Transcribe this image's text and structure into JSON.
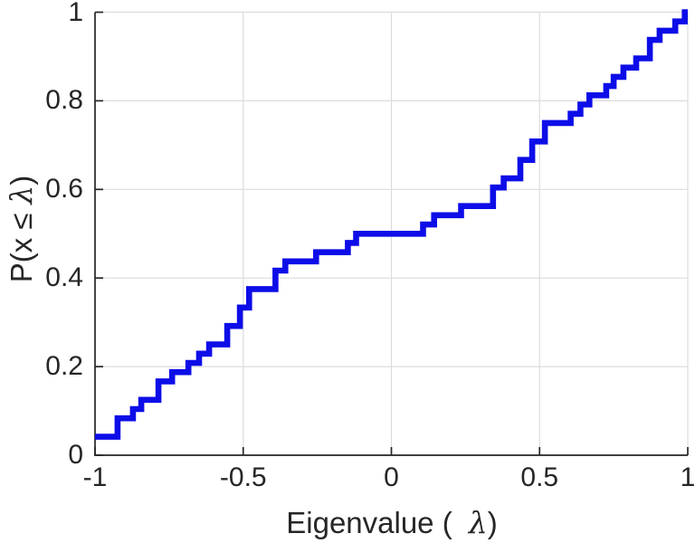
{
  "figure": {
    "background": "#ffffff"
  },
  "chart_data": {
    "type": "line",
    "variant": "empirical-cdf-staircase",
    "title": "",
    "xlabel": {
      "prefix": "Eigenvalue (",
      "symbol": "λ",
      "suffix": ")"
    },
    "ylabel": {
      "prefix": "P(x ≤",
      "symbol": "λ",
      "suffix": ")"
    },
    "xlim": [
      -1,
      1
    ],
    "ylim": [
      0,
      1
    ],
    "grid": true,
    "legend": "none",
    "line_color": "#0d0de8",
    "axis_color": "#262626",
    "grid_color": "#dcdcdc",
    "xticks": [
      {
        "v": -1,
        "label": "-1"
      },
      {
        "v": -0.5,
        "label": "-0.5"
      },
      {
        "v": 0,
        "label": "0"
      },
      {
        "v": 0.5,
        "label": "0.5"
      },
      {
        "v": 1,
        "label": "1"
      }
    ],
    "yticks": [
      {
        "v": 0,
        "label": "0"
      },
      {
        "v": 0.2,
        "label": "0.2"
      },
      {
        "v": 0.4,
        "label": "0.4"
      },
      {
        "v": 0.6,
        "label": "0.6"
      },
      {
        "v": 0.8,
        "label": "0.8"
      },
      {
        "v": 1,
        "label": "1"
      }
    ],
    "steps": [
      [
        -1.0,
        0.0417
      ],
      [
        -0.924,
        0.0833
      ],
      [
        -0.872,
        0.1042
      ],
      [
        -0.844,
        0.125
      ],
      [
        -0.786,
        0.1667
      ],
      [
        -0.74,
        0.1875
      ],
      [
        -0.685,
        0.2083
      ],
      [
        -0.649,
        0.2292
      ],
      [
        -0.615,
        0.25
      ],
      [
        -0.554,
        0.2917
      ],
      [
        -0.511,
        0.3333
      ],
      [
        -0.48,
        0.375
      ],
      [
        -0.391,
        0.4167
      ],
      [
        -0.358,
        0.4375
      ],
      [
        -0.254,
        0.4583
      ],
      [
        -0.147,
        0.4792
      ],
      [
        -0.119,
        0.5
      ],
      [
        0.107,
        0.5208
      ],
      [
        0.144,
        0.5417
      ],
      [
        0.235,
        0.5625
      ],
      [
        0.343,
        0.6042
      ],
      [
        0.379,
        0.625
      ],
      [
        0.435,
        0.6667
      ],
      [
        0.475,
        0.7083
      ],
      [
        0.518,
        0.75
      ],
      [
        0.605,
        0.7708
      ],
      [
        0.638,
        0.7917
      ],
      [
        0.668,
        0.8125
      ],
      [
        0.725,
        0.8333
      ],
      [
        0.75,
        0.8542
      ],
      [
        0.783,
        0.875
      ],
      [
        0.826,
        0.8958
      ],
      [
        0.872,
        0.9375
      ],
      [
        0.905,
        0.9583
      ],
      [
        0.958,
        0.9792
      ],
      [
        0.99,
        1.0
      ]
    ]
  }
}
